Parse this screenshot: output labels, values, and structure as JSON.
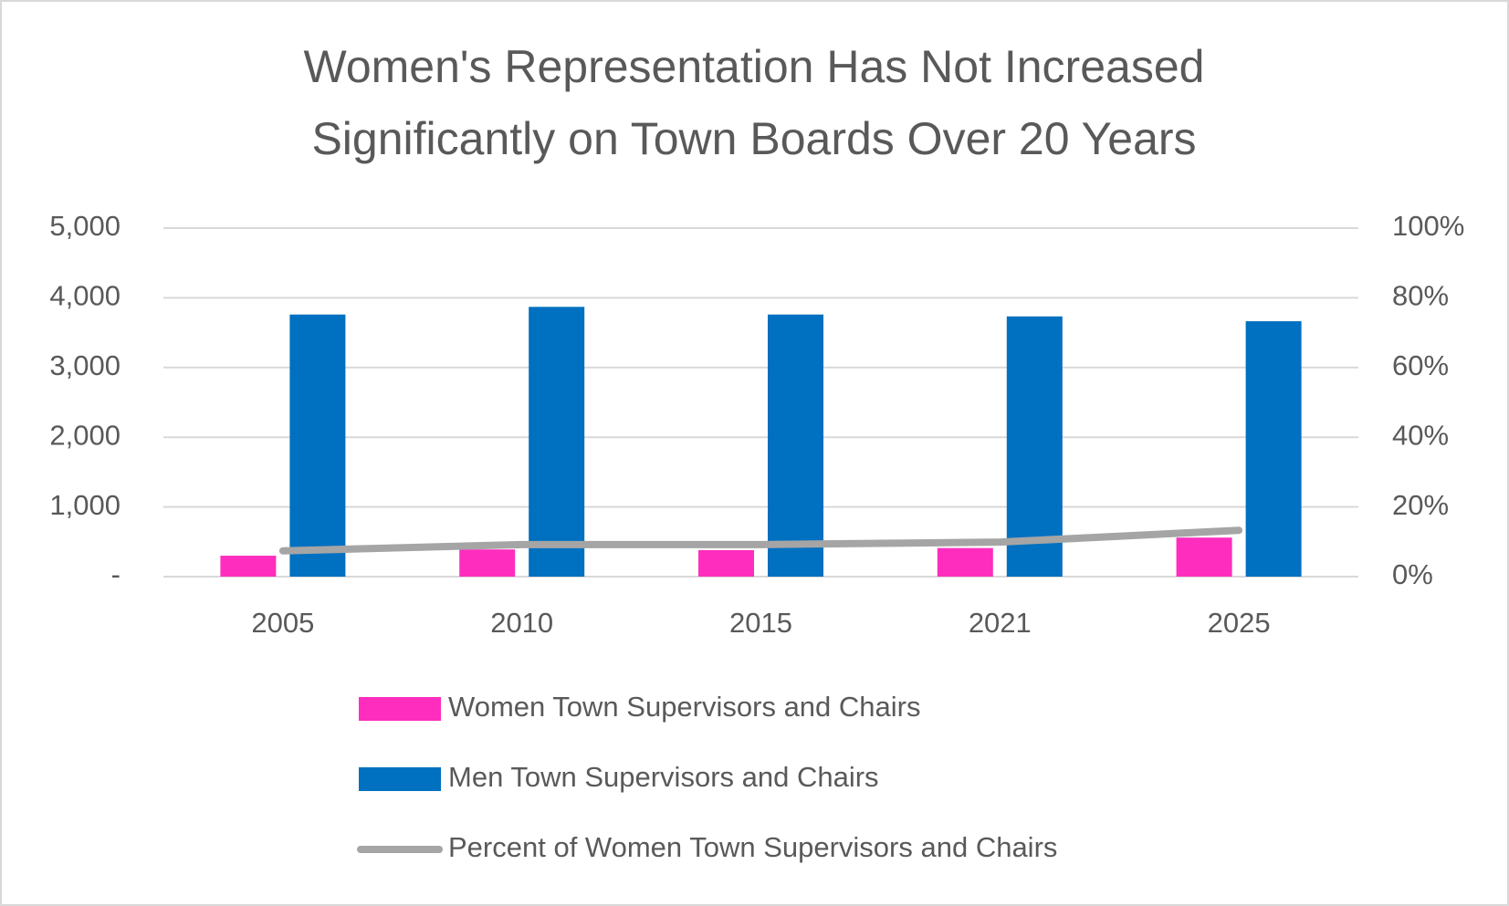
{
  "chart_data": {
    "type": "bar",
    "title": [
      "Women's Representation Has Not Increased",
      "Significantly on Town Boards Over 20 Years"
    ],
    "categories": [
      "2005",
      "2010",
      "2015",
      "2021",
      "2025"
    ],
    "series": [
      {
        "name": "Women Town Supervisors and Chairs",
        "type": "bar",
        "color": "#ff2dbe",
        "values": [
          300,
          390,
          380,
          410,
          560
        ]
      },
      {
        "name": "Men Town Supervisors and Chairs",
        "type": "bar",
        "color": "#0070c0",
        "values": [
          3760,
          3870,
          3760,
          3733,
          3664
        ]
      },
      {
        "name": "Percent of Women Town Supervisors and Chairs",
        "type": "line",
        "axis": "y2",
        "color": "#a5a5a5",
        "values": [
          7.4,
          9.2,
          9.2,
          9.9,
          13.3
        ]
      }
    ],
    "ylim": [
      0,
      5000
    ],
    "yticks": [
      {
        "value": 0,
        "label": "-"
      },
      {
        "value": 1000,
        "label": "1,000"
      },
      {
        "value": 2000,
        "label": "2,000"
      },
      {
        "value": 3000,
        "label": "3,000"
      },
      {
        "value": 4000,
        "label": "4,000"
      },
      {
        "value": 5000,
        "label": "5,000"
      }
    ],
    "y2lim": [
      0,
      100
    ],
    "y2ticks": [
      {
        "value": 0,
        "label": "0%"
      },
      {
        "value": 20,
        "label": "20%"
      },
      {
        "value": 40,
        "label": "40%"
      },
      {
        "value": 60,
        "label": "60%"
      },
      {
        "value": 80,
        "label": "80%"
      },
      {
        "value": 100,
        "label": "100%"
      }
    ],
    "grid": true,
    "legend": "bottom"
  }
}
